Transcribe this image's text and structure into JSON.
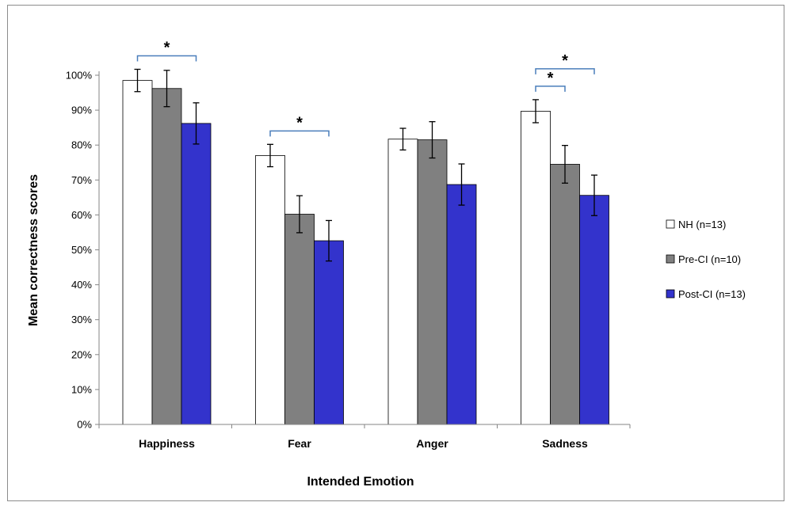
{
  "chart_data": {
    "type": "bar",
    "categories": [
      "Happiness",
      "Fear",
      "Anger",
      "Sadness"
    ],
    "xlabel": "Intended Emotion",
    "ylabel": "Mean correctness scores",
    "ylim": [
      0,
      100
    ],
    "yticks": [
      0,
      10,
      20,
      30,
      40,
      50,
      60,
      70,
      80,
      90,
      100
    ],
    "yticks_suffix": "%",
    "grid": false,
    "legend_position": "right",
    "series": [
      {
        "name": "NH (n=13)",
        "color": "#ffffff",
        "values": [
          98.5,
          77,
          81.7,
          89.7
        ],
        "errors": [
          3.2,
          3.2,
          3.1,
          3.3
        ]
      },
      {
        "name": "Pre-CI (n=10)",
        "color": "#808080",
        "values": [
          96.2,
          60.2,
          81.5,
          74.5
        ],
        "errors": [
          5.2,
          5.3,
          5.2,
          5.4
        ]
      },
      {
        "name": "Post-CI (n=13)",
        "color": "#3333cc",
        "values": [
          86.2,
          52.6,
          68.7,
          65.6
        ],
        "errors": [
          5.9,
          5.8,
          5.9,
          5.8
        ]
      }
    ],
    "significance": [
      {
        "category": 0,
        "from_series": 0,
        "to_series": 2,
        "level": 1,
        "label": "*"
      },
      {
        "category": 1,
        "from_series": 0,
        "to_series": 2,
        "level": 1,
        "label": "*"
      },
      {
        "category": 3,
        "from_series": 0,
        "to_series": 1,
        "level": 1,
        "label": "*"
      },
      {
        "category": 3,
        "from_series": 0,
        "to_series": 2,
        "level": 2,
        "label": "*"
      }
    ]
  }
}
